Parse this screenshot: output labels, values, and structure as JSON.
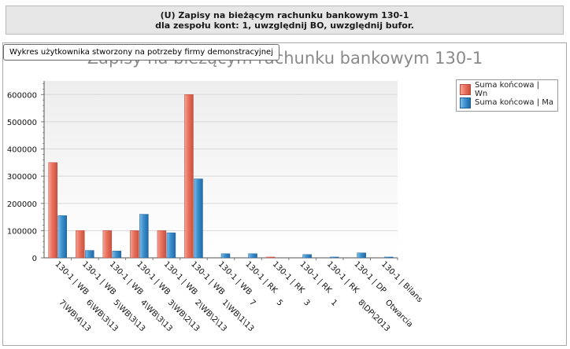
{
  "header": {
    "line1": "(U) Zapisy na bieżącym rachunku bankowym 130-1",
    "line2": "dla zespołu kont: 1, uwzględnij BO, uwzględnij bufor."
  },
  "tooltip": "Wykres użytkownika  stworzony na potrzeby firmy demonstracyjnej",
  "chart_data": {
    "type": "bar",
    "title": "Zapisy na bieżącym rachunku bankowym 130-1",
    "categories": [
      "130-1 | WB 7\\WB\\4\\13",
      "130-1 | WB 6\\WB\\3\\13",
      "130-1 | WB 5\\WB\\3\\13",
      "130-1 | WB 4\\WB\\3\\13",
      "130-1 | WB 3\\WB\\2\\13",
      "130-1 | WB 2\\WB\\2\\13",
      "130-1 | WB 1\\WB\\1\\13",
      "130-1 | RK 7",
      "130-1 | RK 5",
      "130-1 | RK 3",
      "130-1 | RK 1",
      "130-1 | DP 8\\DP\\2013",
      "130-1 | Bilans Otwarcia"
    ],
    "series": [
      {
        "name": "Suma końcowa | Wn",
        "color": "#e8705c",
        "values": [
          350000,
          100000,
          100000,
          100000,
          100000,
          600000,
          0,
          0,
          3000,
          0,
          0,
          0,
          0
        ]
      },
      {
        "name": "Suma końcowa | Ma",
        "color": "#3b8fcd",
        "values": [
          155000,
          27000,
          25000,
          160000,
          92000,
          290000,
          15000,
          15000,
          0,
          12000,
          3000,
          18000,
          3000
        ]
      }
    ],
    "ylim": [
      0,
      650000
    ],
    "yticks": [
      "0",
      "100000",
      "200000",
      "300000",
      "400000",
      "500000",
      "600000"
    ],
    "grid": true,
    "legend": "top-right"
  }
}
